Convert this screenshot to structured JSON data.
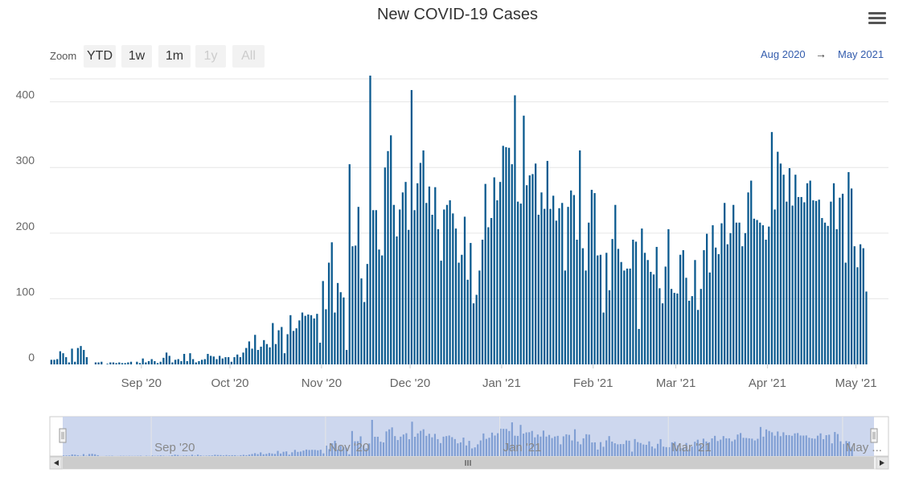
{
  "chart_data": {
    "type": "bar",
    "title": "New COVID-19 Cases",
    "xlabel": "",
    "ylabel": "",
    "ylim": [
      0,
      440
    ],
    "yticks": [
      0,
      100,
      200,
      300,
      400
    ],
    "x_start": "2020-08-01",
    "x_end": "2021-05-11",
    "xtick_labels": [
      {
        "label": "Sep '20",
        "date": "2020-09-01"
      },
      {
        "label": "Oct '20",
        "date": "2020-10-01"
      },
      {
        "label": "Nov '20",
        "date": "2020-11-01"
      },
      {
        "label": "Dec '20",
        "date": "2020-12-01"
      },
      {
        "label": "Jan '21",
        "date": "2021-01-01"
      },
      {
        "label": "Feb '21",
        "date": "2021-02-01"
      },
      {
        "label": "Mar '21",
        "date": "2021-03-01"
      },
      {
        "label": "Apr '21",
        "date": "2021-04-01"
      },
      {
        "label": "May '21",
        "date": "2021-05-01"
      }
    ],
    "grid": true,
    "series": [
      {
        "color": "#0b5a8f",
        "values": [
          7,
          7,
          8,
          20,
          17,
          11,
          3,
          24,
          4,
          25,
          28,
          22,
          11,
          0,
          0,
          3,
          3,
          4,
          0,
          1,
          3,
          3,
          2,
          3,
          2,
          2,
          3,
          4,
          0,
          4,
          2,
          9,
          3,
          5,
          8,
          5,
          2,
          4,
          10,
          18,
          13,
          3,
          7,
          8,
          5,
          16,
          5,
          17,
          8,
          3,
          5,
          7,
          8,
          16,
          13,
          12,
          8,
          13,
          9,
          11,
          11,
          4,
          11,
          15,
          11,
          18,
          25,
          35,
          24,
          45,
          22,
          27,
          37,
          31,
          26,
          63,
          31,
          52,
          57,
          17,
          46,
          75,
          51,
          55,
          67,
          79,
          74,
          76,
          75,
          70,
          77,
          33,
          127,
          84,
          155,
          186,
          79,
          124,
          110,
          102,
          22,
          305,
          180,
          181,
          240,
          131,
          95,
          153,
          440,
          235,
          235,
          175,
          166,
          300,
          325,
          349,
          243,
          195,
          236,
          262,
          278,
          205,
          418,
          235,
          276,
          307,
          326,
          246,
          271,
          228,
          270,
          206,
          158,
          236,
          243,
          250,
          230,
          207,
          155,
          167,
          225,
          129,
          185,
          93,
          106,
          143,
          190,
          275,
          209,
          223,
          285,
          250,
          278,
          333,
          331,
          330,
          305,
          410,
          248,
          245,
          379,
          273,
          288,
          290,
          306,
          228,
          262,
          237,
          310,
          237,
          257,
          219,
          238,
          246,
          143,
          240,
          265,
          258,
          190,
          326,
          177,
          143,
          216,
          266,
          261,
          166,
          167,
          79,
          170,
          113,
          191,
          243,
          176,
          156,
          143,
          146,
          146,
          190,
          187,
          54,
          207,
          170,
          159,
          141,
          137,
          179,
          116,
          93,
          149,
          206,
          115,
          109,
          108,
          167,
          174,
          132,
          97,
          104,
          159,
          83,
          115,
          174,
          199,
          140,
          212,
          178,
          168,
          215,
          246,
          183,
          200,
          243,
          216,
          216,
          180,
          200,
          262,
          280,
          222,
          220,
          216,
          212,
          190,
          210,
          354,
          236,
          324,
          306,
          289,
          248,
          299,
          242,
          289,
          255,
          255,
          247,
          276,
          280,
          250,
          249,
          251,
          223,
          216,
          211,
          248,
          276,
          206,
          254,
          260,
          155,
          293,
          268,
          180,
          148,
          183,
          177,
          111
        ]
      }
    ]
  },
  "ui": {
    "zoom_label": "Zoom",
    "zoom_buttons": [
      {
        "label": "YTD",
        "enabled": true
      },
      {
        "label": "1w",
        "enabled": true
      },
      {
        "label": "1m",
        "enabled": true
      },
      {
        "label": "1y",
        "enabled": false
      },
      {
        "label": "All",
        "enabled": false
      }
    ],
    "range_from": "Aug 2020",
    "range_arrow": "→",
    "range_to": "May 2021",
    "navigator_labels": [
      "Sep '20",
      "Nov '20",
      "Jan '21",
      "Mar '21",
      "May ..."
    ],
    "menu_icon": "hamburger-icon"
  },
  "colors": {
    "bar": "#0b5a8f",
    "navigator_mask": "#c8d3ec",
    "navigator_bars": "#7f9ed3",
    "link": "#335cad"
  }
}
